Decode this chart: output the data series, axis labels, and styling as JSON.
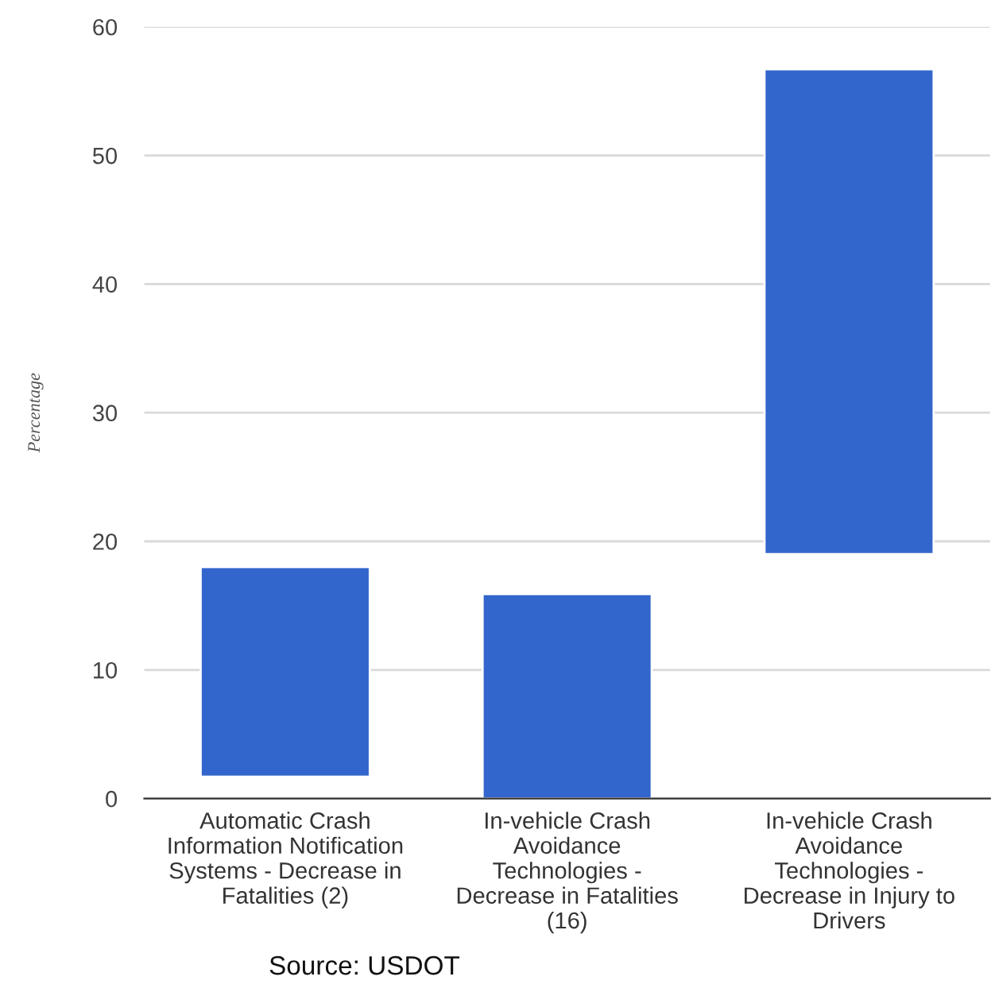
{
  "chart_data": {
    "type": "bar",
    "ylabel": "Percentage",
    "categories": [
      "Automatic Crash\nInformation Notification\nSystems - Decrease in\nFatalities (2)",
      "In-vehicle Crash\nAvoidance\nTechnologies -\nDecrease in Fatalities\n(16)",
      "In-vehicle Crash\nAvoidance\nTechnologies -\nDecrease in Injury to\nDrivers"
    ],
    "values": [
      16.3,
      15.9,
      37.7
    ],
    "base": [
      1.7,
      0,
      19
    ],
    "color": "#3366cc",
    "ylim": [
      0,
      60
    ],
    "yticks": [
      0,
      10,
      20,
      30,
      40,
      50,
      60
    ],
    "grid": "y",
    "annotations": [
      "Source: USDOT"
    ]
  }
}
